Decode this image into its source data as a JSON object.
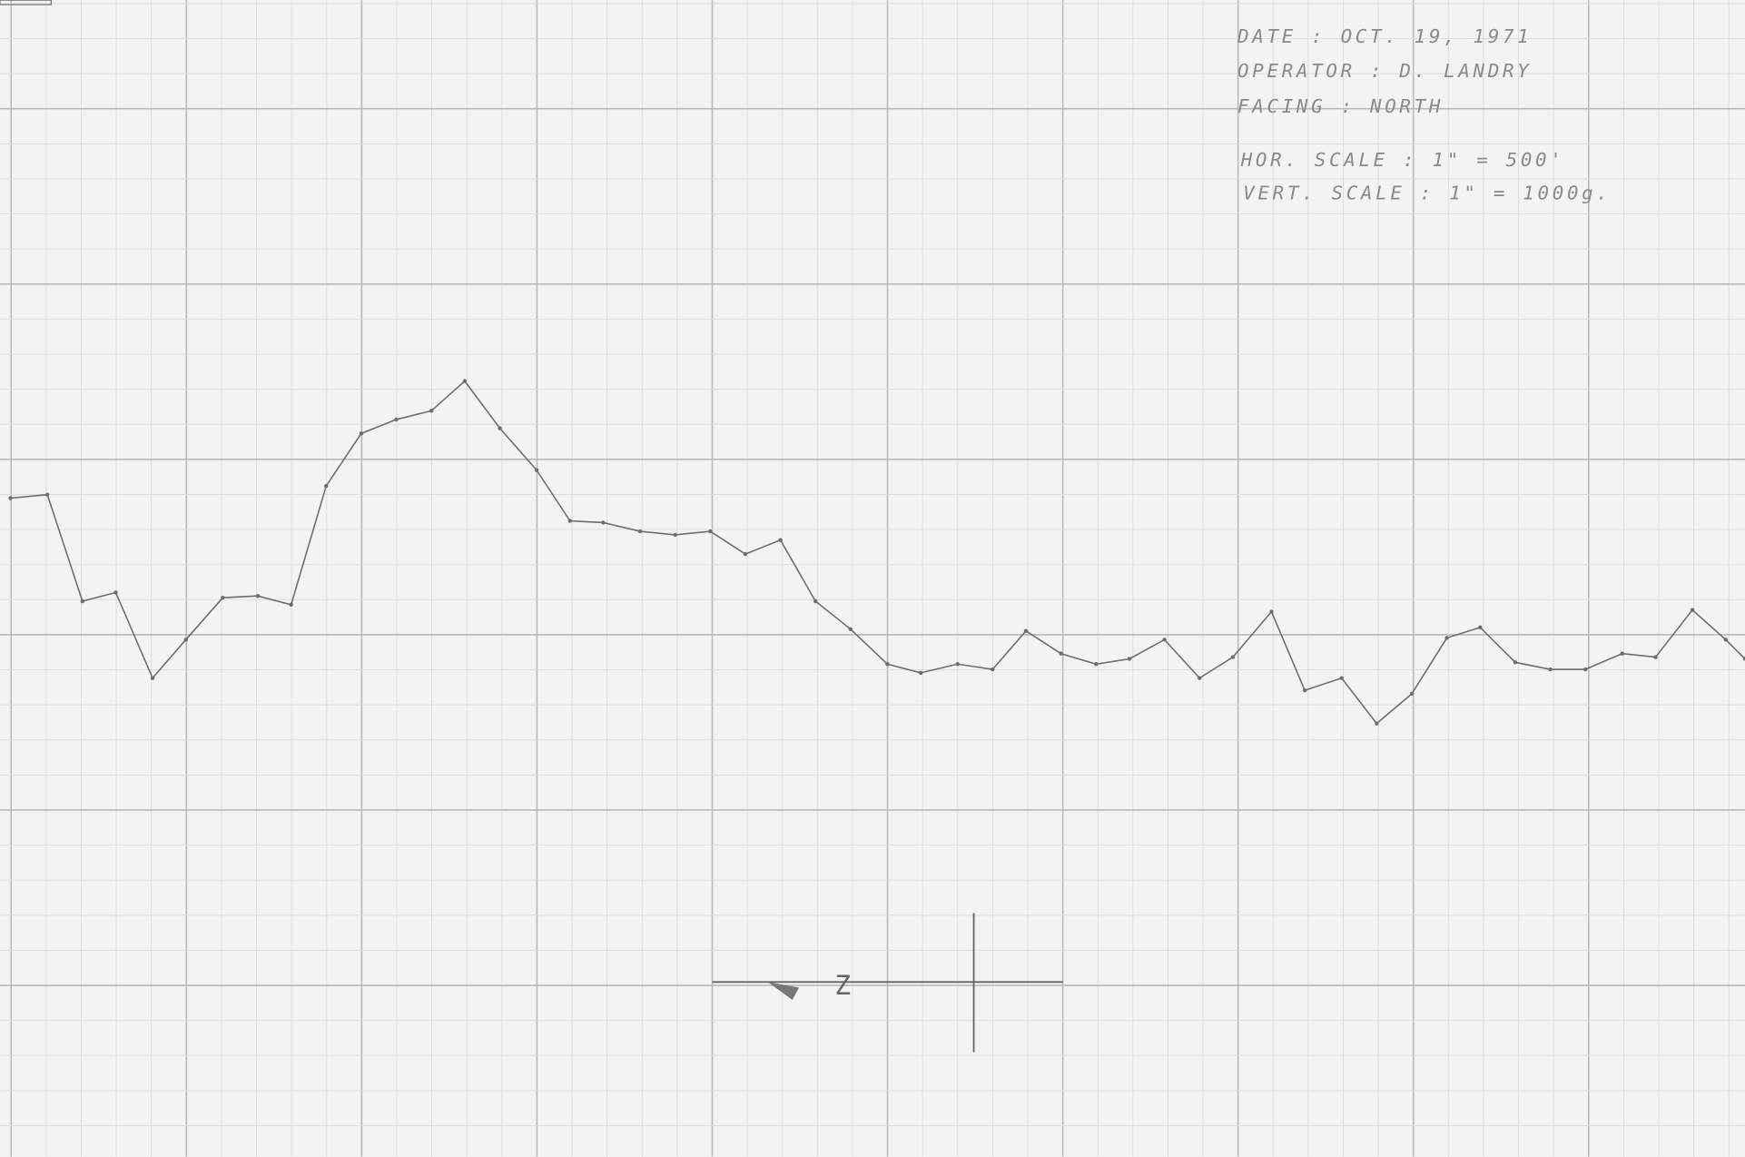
{
  "chart_data": {
    "type": "line",
    "annotations": [
      "DATE : OCT. 19, 1971",
      "OPERATOR : D. LANDRY",
      "FACING : NORTH",
      "HOR. SCALE : 1\" = 500'",
      "VERT. SCALE : 1\" = 1000g.",
      "Z"
    ],
    "x": [
      0,
      0.21,
      0.41,
      0.6,
      0.81,
      1.0,
      1.21,
      1.41,
      1.6,
      1.8,
      2.0,
      2.2,
      2.4,
      2.59,
      2.79,
      3.0,
      3.19,
      3.38,
      3.59,
      3.79,
      3.99,
      4.19,
      4.39,
      4.59,
      4.79,
      5.0,
      5.19,
      5.4,
      5.6,
      5.79,
      5.99,
      6.19,
      6.38,
      6.58,
      6.78,
      6.97,
      7.19,
      7.38,
      7.59,
      7.79,
      7.99,
      8.19,
      8.38,
      8.58,
      8.78,
      8.98,
      9.19,
      9.38,
      9.59,
      9.78,
      9.89
    ],
    "series": [
      {
        "color": "#6e6e6e",
        "values": [
          0.78,
          0.8,
          0.19,
          0.24,
          -0.25,
          -0.03,
          0.21,
          0.22,
          0.17,
          0.85,
          1.15,
          1.23,
          1.28,
          1.45,
          1.18,
          0.94,
          0.65,
          0.64,
          0.59,
          0.57,
          0.59,
          0.46,
          0.54,
          0.19,
          0.03,
          -0.17,
          -0.22,
          -0.17,
          -0.2,
          0.02,
          -0.11,
          -0.17,
          -0.14,
          -0.03,
          -0.25,
          -0.13,
          0.13,
          -0.32,
          -0.25,
          -0.51,
          -0.34,
          -0.02,
          0.04,
          -0.16,
          -0.2,
          -0.2,
          -0.11,
          -0.13,
          0.14,
          -0.03,
          -0.14
        ]
      }
    ],
    "xlim": [
      -0.06,
      9.89
    ],
    "ylim": [
      -2.99,
      3.63
    ],
    "grid": true
  }
}
